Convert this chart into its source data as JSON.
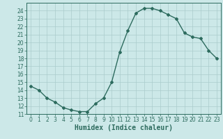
{
  "x": [
    0,
    1,
    2,
    3,
    4,
    5,
    6,
    7,
    8,
    9,
    10,
    11,
    12,
    13,
    14,
    15,
    16,
    17,
    18,
    19,
    20,
    21,
    22,
    23
  ],
  "y": [
    14.5,
    14.0,
    13.0,
    12.5,
    11.8,
    11.5,
    11.3,
    11.3,
    12.3,
    13.0,
    15.0,
    18.8,
    21.5,
    23.7,
    24.3,
    24.3,
    24.0,
    23.5,
    23.0,
    21.2,
    20.7,
    20.5,
    19.0,
    18.0
  ],
  "line_color": "#2d6b5e",
  "marker": "D",
  "markersize": 2,
  "linewidth": 1.0,
  "xlabel": "Humidex (Indice chaleur)",
  "xlabel_fontsize": 7,
  "xlabel_bold": true,
  "ylim": [
    11,
    25
  ],
  "xlim": [
    -0.5,
    23.5
  ],
  "yticks": [
    11,
    12,
    13,
    14,
    15,
    16,
    17,
    18,
    19,
    20,
    21,
    22,
    23,
    24
  ],
  "xticks": [
    0,
    1,
    2,
    3,
    4,
    5,
    6,
    7,
    8,
    9,
    10,
    11,
    12,
    13,
    14,
    15,
    16,
    17,
    18,
    19,
    20,
    21,
    22,
    23
  ],
  "bg_color": "#cce8e8",
  "grid_color": "#aacccc",
  "tick_fontsize": 5.5
}
